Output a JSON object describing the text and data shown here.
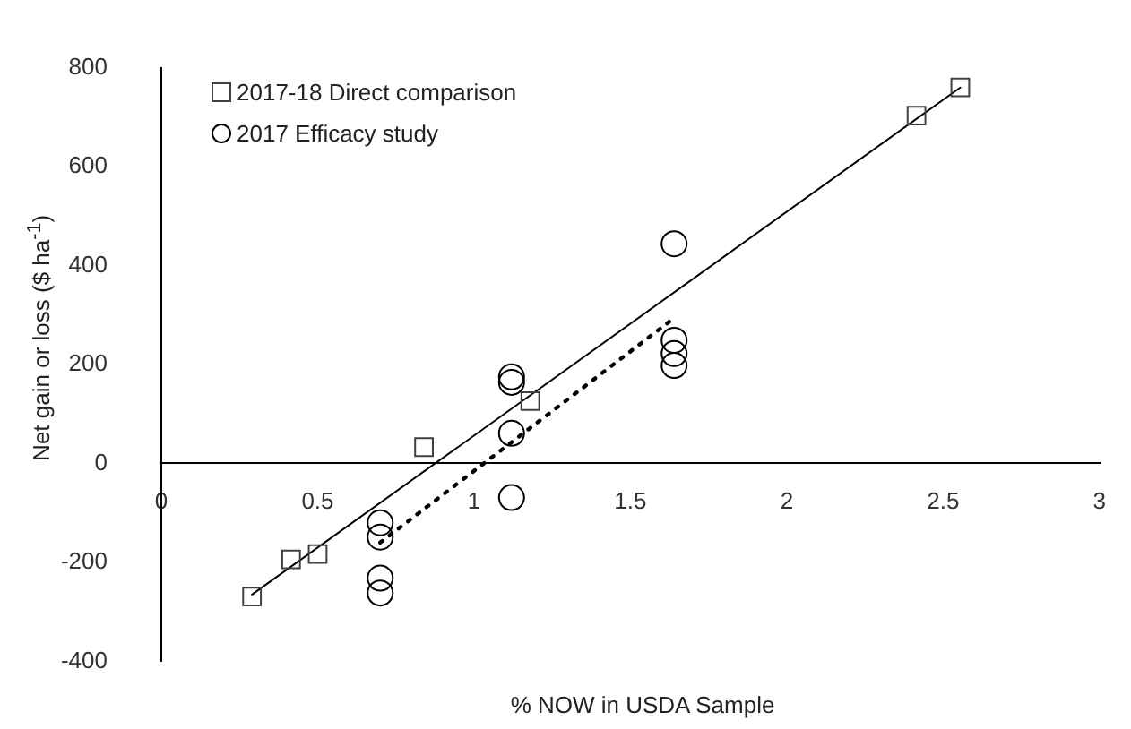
{
  "chart_data": {
    "type": "scatter",
    "xlabel": "% NOW in USDA Sample",
    "ylabel": "Net gain or loss ($ ha$^{-1}$)",
    "xlim": [
      0,
      3
    ],
    "xticks": [
      0,
      0.5,
      1,
      1.5,
      2,
      2.5,
      3
    ],
    "ylim": [
      -400,
      800
    ],
    "yticks": [
      -400,
      -200,
      0,
      200,
      400,
      600,
      800
    ],
    "grid": false,
    "legend": "top left",
    "series": [
      {
        "name": "2017-18 Direct comparison",
        "color": "#404040",
        "marker": "square",
        "x": [
          0.29,
          0.415,
          0.5,
          0.84,
          1.18,
          2.415,
          2.555
        ],
        "values": [
          -269,
          -194,
          -183,
          33,
          126,
          703,
          760
        ]
      },
      {
        "name": "2017 Efficacy study",
        "color": "#000000",
        "marker": "circle",
        "x": [
          0.7,
          0.7,
          0.7,
          0.7,
          1.12,
          1.12,
          1.12,
          1.12,
          1.64,
          1.64,
          1.64,
          1.64
        ],
        "values": [
          -120,
          -149,
          -232,
          -262,
          175,
          164,
          61,
          -69,
          444,
          249,
          222,
          198
        ]
      },
      {
        "type": "line",
        "color": "#000000",
        "line_style": "solid",
        "marker": "none",
        "x": [
          0.29,
          2.555
        ],
        "values": [
          -265,
          760
        ]
      },
      {
        "type": "line",
        "color": "#000000",
        "line_style": "dotted",
        "marker": "none",
        "x": [
          0.7,
          1.64
        ],
        "values": [
          -160,
          294
        ]
      }
    ]
  }
}
